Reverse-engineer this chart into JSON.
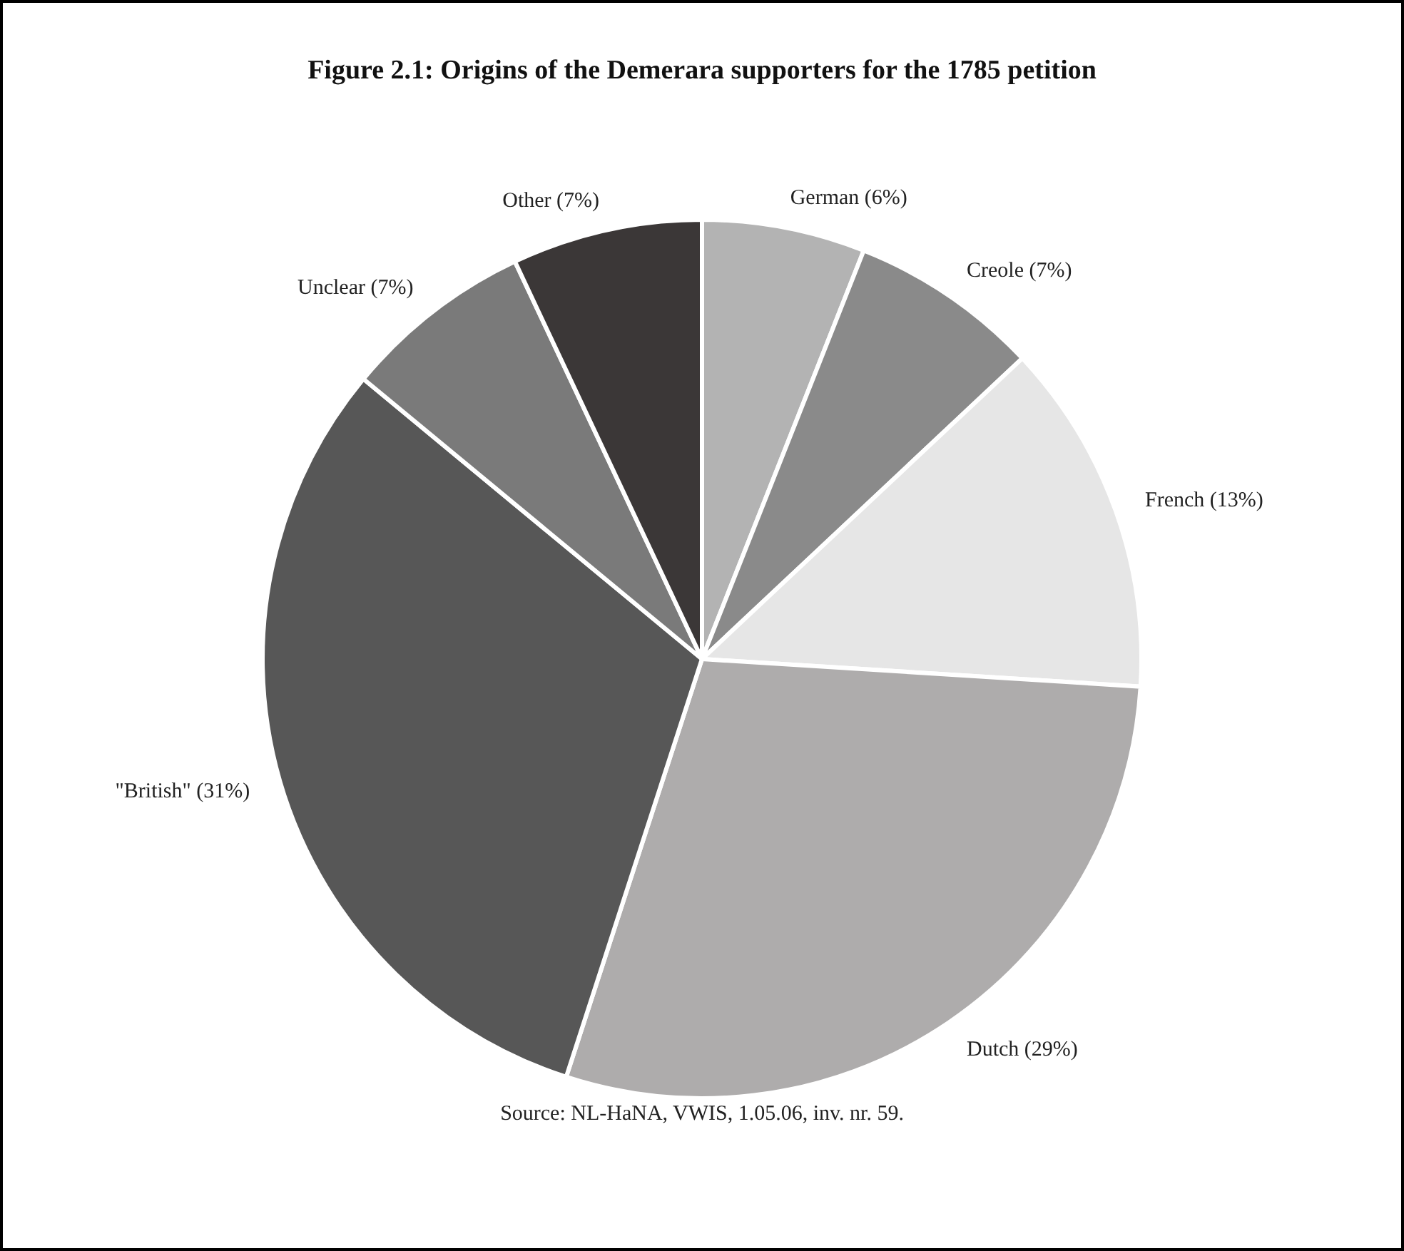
{
  "chart_data": {
    "type": "pie",
    "title": "Figure 2.1: Origins of the Demerara supporters for the 1785 petition",
    "categories": [
      "German (6%)",
      "Creole (7%)",
      "French (13%)",
      "Dutch (29%)",
      "\"British\" (31%)",
      "Unclear (7%)",
      "Other (7%)"
    ],
    "values": [
      6,
      7,
      13,
      29,
      31,
      7,
      7
    ],
    "colors": [
      "#b3b3b3",
      "#8a8a8a",
      "#e6e6e6",
      "#aeacac",
      "#575757",
      "#7a7a7a",
      "#3b3737"
    ],
    "annotations": [
      "Source: NL-HaNA, VWIS, 1.05.06, inv. nr. 59."
    ]
  }
}
